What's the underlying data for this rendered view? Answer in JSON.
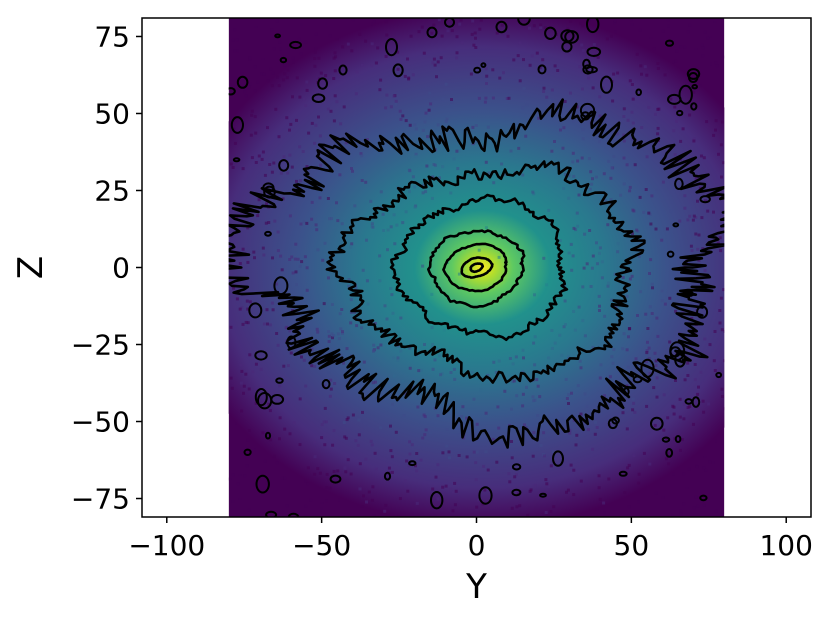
{
  "chart_data": {
    "type": "heatmap",
    "subtype": "density-with-contours",
    "title": "",
    "xlabel": "Y",
    "ylabel": "Z",
    "xlim": [
      -108,
      108
    ],
    "ylim": [
      -81,
      81
    ],
    "xticks": [
      -100,
      -50,
      0,
      50,
      100
    ],
    "xtick_labels": [
      "−100",
      "−50",
      "0",
      "50",
      "100"
    ],
    "yticks": [
      -75,
      -50,
      -25,
      0,
      25,
      50,
      75
    ],
    "ytick_labels": [
      "−75",
      "−50",
      "−25",
      "0",
      "25",
      "50",
      "75"
    ],
    "data_extent": {
      "x": [
        -80,
        80
      ],
      "y": [
        -81,
        81
      ]
    },
    "colormap": "viridis",
    "colors": {
      "low": "#440154",
      "mid": "#21918c",
      "high": "#fde725",
      "contour": "#000000"
    },
    "peak": {
      "x": 0,
      "y": 0
    },
    "contour_levels": [
      {
        "level": 1,
        "center": [
          0,
          0
        ],
        "radius_x": 2,
        "radius_y": 1.2,
        "angle_deg": 20,
        "noise": 0.05
      },
      {
        "level": 2,
        "center": [
          0,
          0
        ],
        "radius_x": 5,
        "radius_y": 3,
        "angle_deg": 15,
        "noise": 0.05
      },
      {
        "level": 3,
        "center": [
          0,
          0
        ],
        "radius_x": 10,
        "radius_y": 7.5,
        "angle_deg": 10,
        "noise": 0.06
      },
      {
        "level": 4,
        "center": [
          0,
          0
        ],
        "radius_x": 15,
        "radius_y": 12,
        "angle_deg": 5,
        "noise": 0.07
      },
      {
        "level": 5,
        "center": [
          2,
          0
        ],
        "radius_x": 27,
        "radius_y": 22,
        "angle_deg": 0,
        "noise": 0.09
      },
      {
        "level": 6,
        "center": [
          5,
          -1
        ],
        "radius_x": 47,
        "radius_y": 33,
        "angle_deg": 0,
        "noise": 0.13
      },
      {
        "level": 7,
        "center": [
          5,
          0
        ],
        "radius_x": 75,
        "radius_y": 48,
        "angle_deg": 0,
        "noise": 0.2
      }
    ],
    "grid": false,
    "legend": "none"
  }
}
